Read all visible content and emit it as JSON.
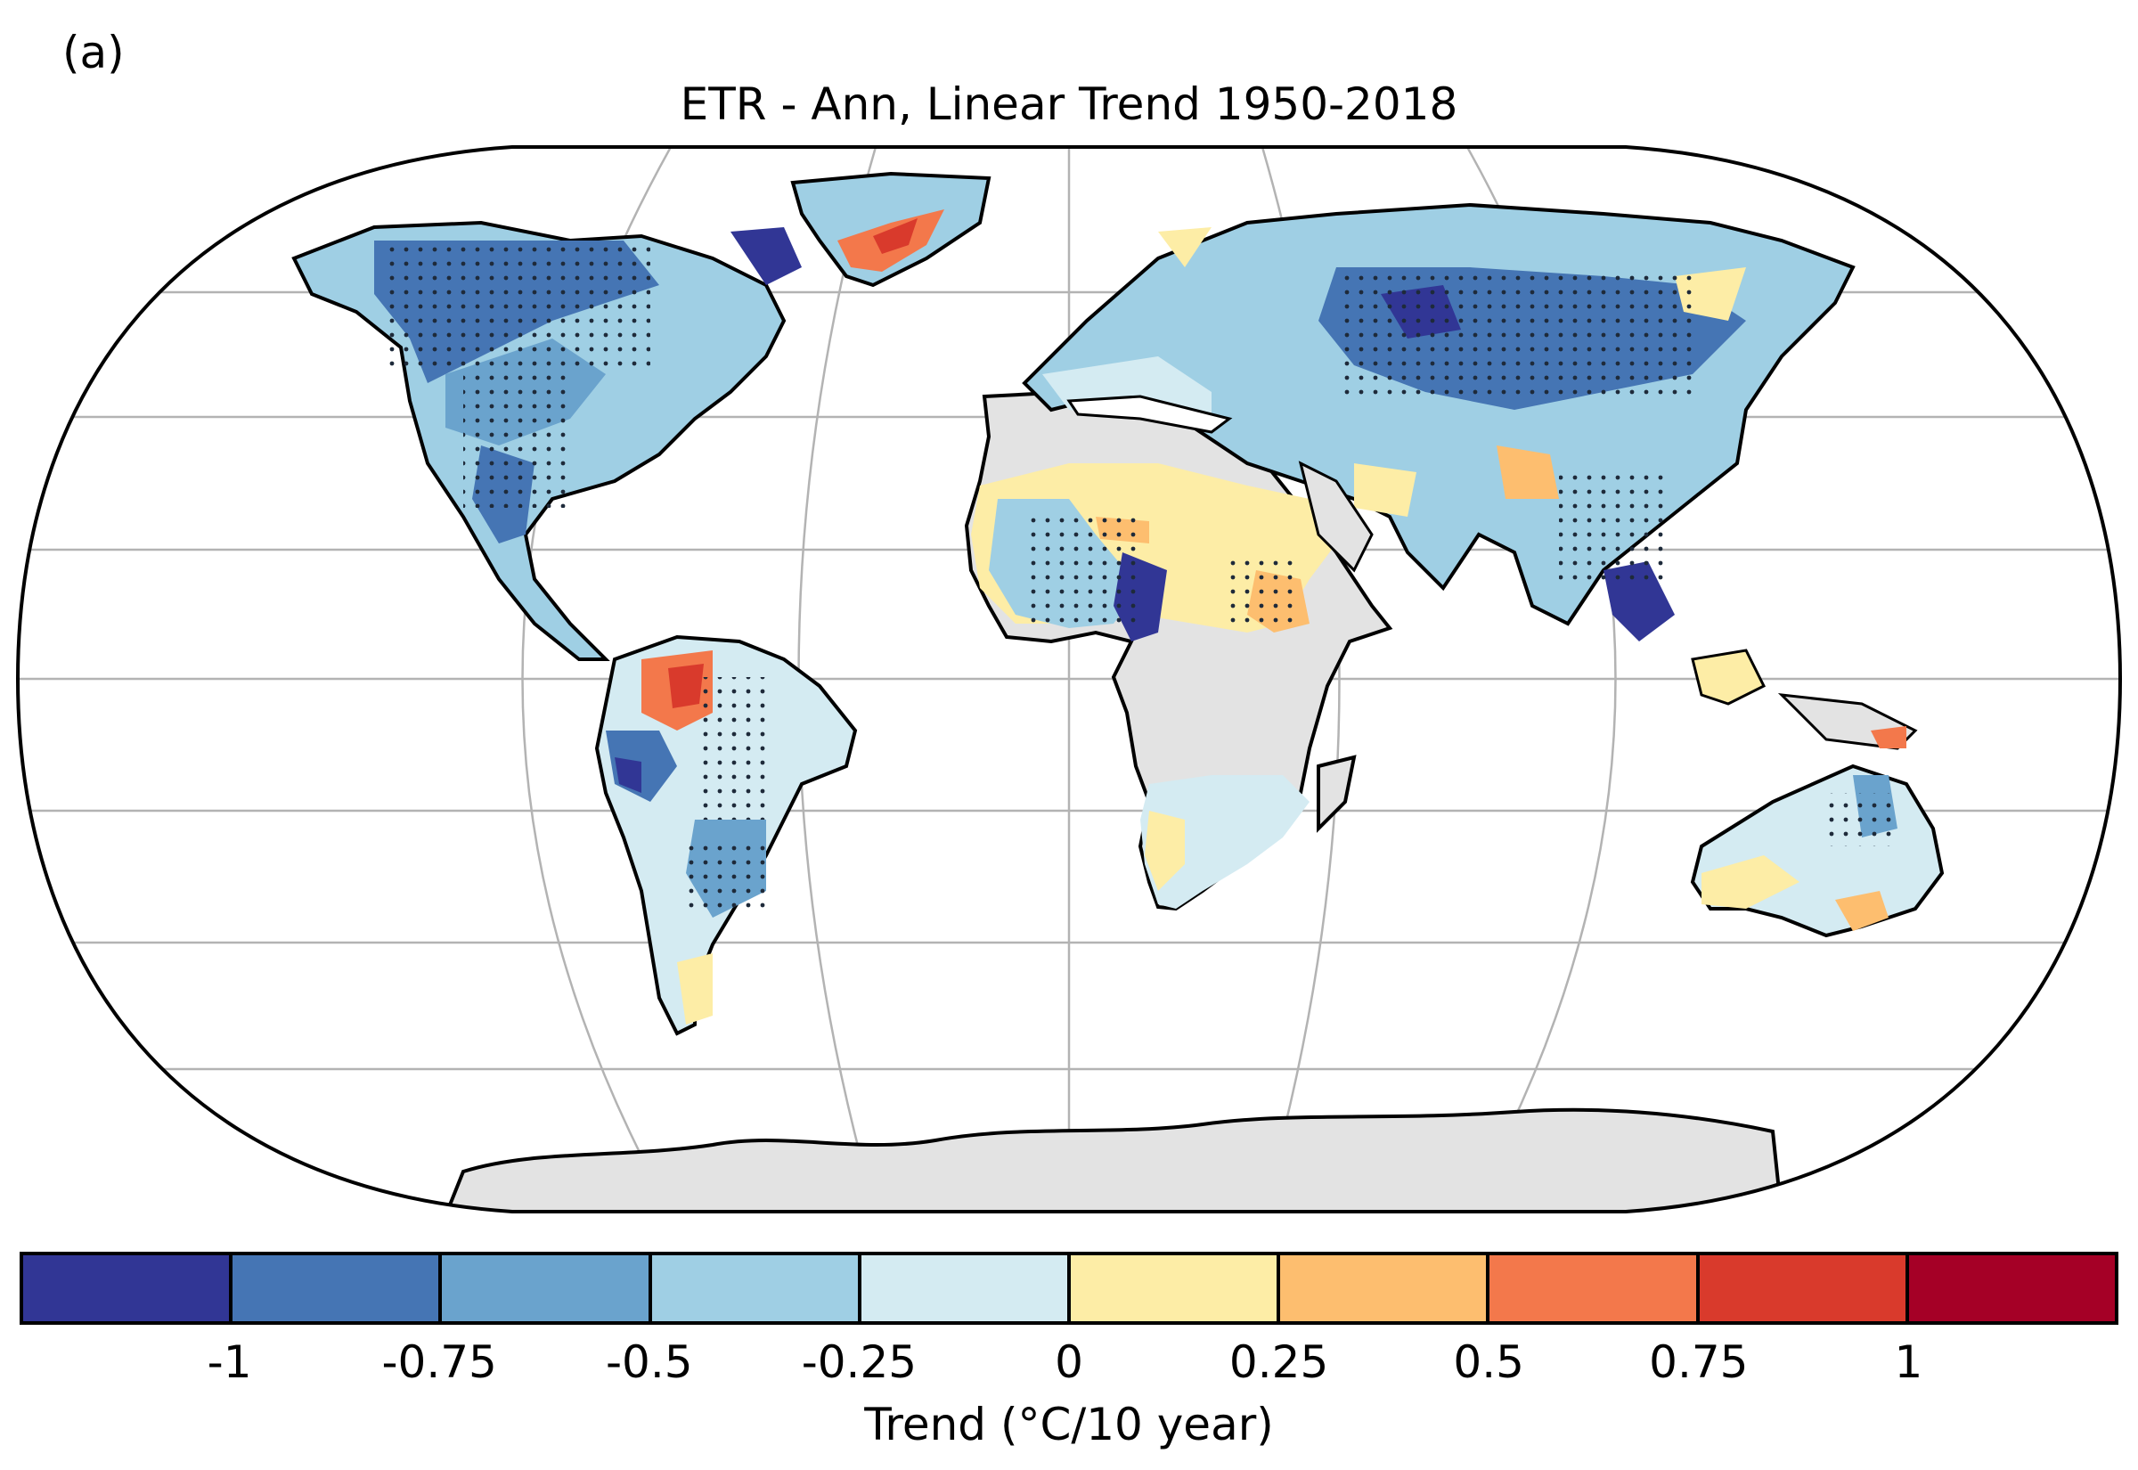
{
  "panel_label": "(a)",
  "title": "ETR - Ann, Linear Trend 1950-2018",
  "colorbar": {
    "label": "Trend (°C/10 year)",
    "ticks": [
      "-1",
      "-0.75",
      "-0.5",
      "-0.25",
      "0",
      "0.25",
      "0.5",
      "0.75",
      "1"
    ],
    "colors": [
      "#313695",
      "#4575b4",
      "#6aa3cd",
      "#9fcfe4",
      "#d4ebf2",
      "#fdeda6",
      "#fdbe6f",
      "#f3784b",
      "#d93a2c",
      "#a50026"
    ]
  },
  "map": {
    "projection": "Robinson",
    "land_no_data_color": "#e3e3e3",
    "stipple_meaning": "significant",
    "regions": [
      {
        "name": "North America",
        "trend_class": "-0.5"
      },
      {
        "name": "Greenland",
        "trend_class": "0.5"
      },
      {
        "name": "South America",
        "trend_class": "-0.25"
      },
      {
        "name": "Amazon",
        "trend_class": "0.75"
      },
      {
        "name": "Europe",
        "trend_class": "0"
      },
      {
        "name": "Asia",
        "trend_class": "-0.5"
      },
      {
        "name": "Sahel",
        "trend_class": "0.25"
      },
      {
        "name": "Southern Africa",
        "trend_class": "0"
      },
      {
        "name": "Australia",
        "trend_class": "0"
      },
      {
        "name": "Africa (no data)",
        "trend_class": "none"
      },
      {
        "name": "Antarctica (no data)",
        "trend_class": "none"
      }
    ]
  }
}
